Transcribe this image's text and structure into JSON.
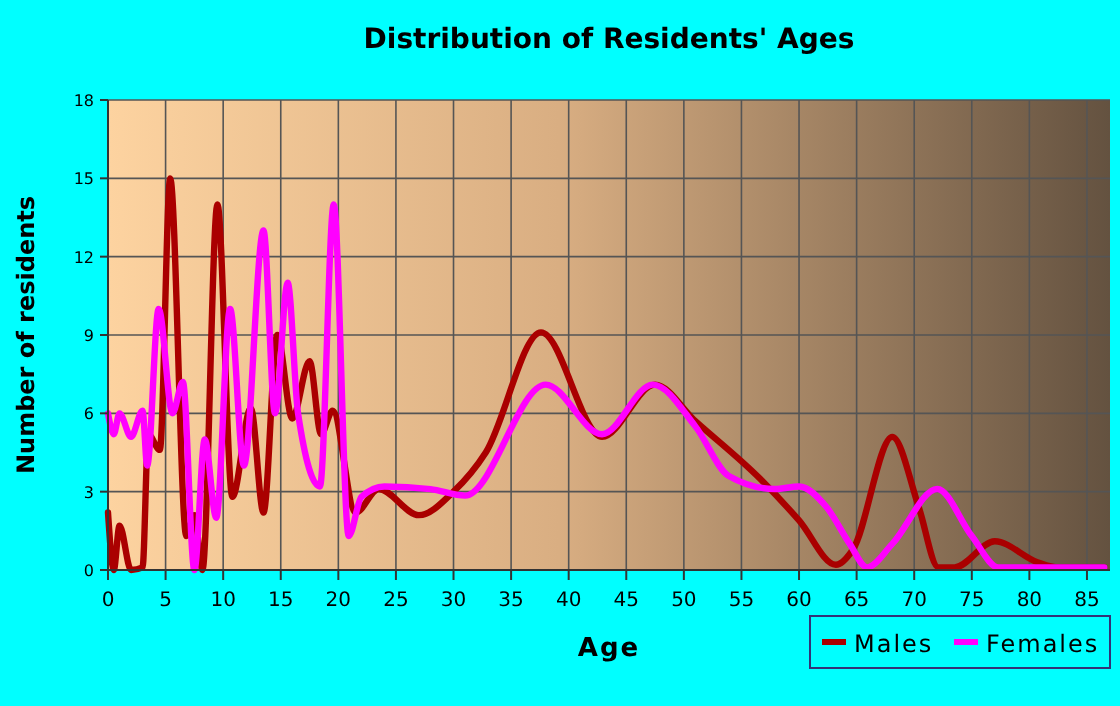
{
  "chart_data": {
    "type": "line",
    "title": "Distribution of Residents' Ages",
    "xlabel": "Age",
    "ylabel": "Number of residents",
    "xlim": [
      0,
      87
    ],
    "xticks": [
      0,
      5,
      10,
      15,
      20,
      25,
      30,
      35,
      40,
      45,
      50,
      55,
      60,
      65,
      70,
      75,
      80,
      85
    ],
    "ylim": [
      0,
      18
    ],
    "yticks": [
      0,
      3,
      6,
      9,
      12,
      15,
      18
    ],
    "grid": true,
    "legend": "bottom right",
    "line_style": "solid",
    "marker": "none",
    "series": [
      {
        "name": "Males",
        "color": "#aa0000",
        "x": [
          0,
          0.5,
          1,
          2,
          3,
          3.5,
          4.5,
          5.4,
          6.8,
          7.5,
          8.2,
          9.5,
          10.8,
          12.4,
          13.5,
          14.7,
          16,
          17.5,
          18.5,
          19.5,
          21.5,
          23.5,
          27,
          30,
          32.8,
          37.6,
          42.9,
          47.5,
          51,
          56.6,
          60,
          63.2,
          64.7,
          68.1,
          70.4,
          72.1,
          73.5,
          77,
          80.7,
          82.5,
          86.5
        ],
        "values": [
          2.2,
          0,
          1.7,
          0,
          0.1,
          5.2,
          4.6,
          15,
          1.3,
          2.1,
          0,
          14,
          2.8,
          6.2,
          2.2,
          9,
          5.8,
          8,
          5.2,
          6.1,
          2.2,
          3.1,
          2.1,
          3,
          4.5,
          9.1,
          5.1,
          7.1,
          5.7,
          3.5,
          1.9,
          0.2,
          0.8,
          5.1,
          2.4,
          0.1,
          0.1,
          1.1,
          0.3,
          0.1,
          0.1
        ]
      },
      {
        "name": "Females",
        "color": "#ff00ff",
        "x": [
          0,
          0.5,
          1,
          2,
          3,
          3.4,
          4.4,
          5.6,
          6.5,
          7.5,
          8.4,
          9.4,
          10.6,
          11.8,
          13.5,
          14.5,
          15.6,
          16.5,
          18.4,
          19.6,
          20.9,
          22,
          24,
          28,
          31,
          38,
          42.9,
          47.3,
          51,
          53.9,
          57.9,
          60,
          62.4,
          64.4,
          65.9,
          68.1,
          72,
          75,
          77.3,
          86.5
        ],
        "values": [
          6,
          5.2,
          6,
          5.1,
          6.1,
          4,
          10,
          6,
          7.2,
          0,
          5,
          2,
          10,
          4,
          13,
          6,
          11,
          6,
          3.2,
          14,
          1.3,
          2.8,
          3.2,
          3.1,
          2.85,
          7.1,
          5.2,
          7.1,
          5.5,
          3.6,
          3.1,
          3.2,
          2.4,
          1,
          0.1,
          1,
          3.1,
          1.3,
          0.1,
          0.1
        ]
      }
    ]
  }
}
